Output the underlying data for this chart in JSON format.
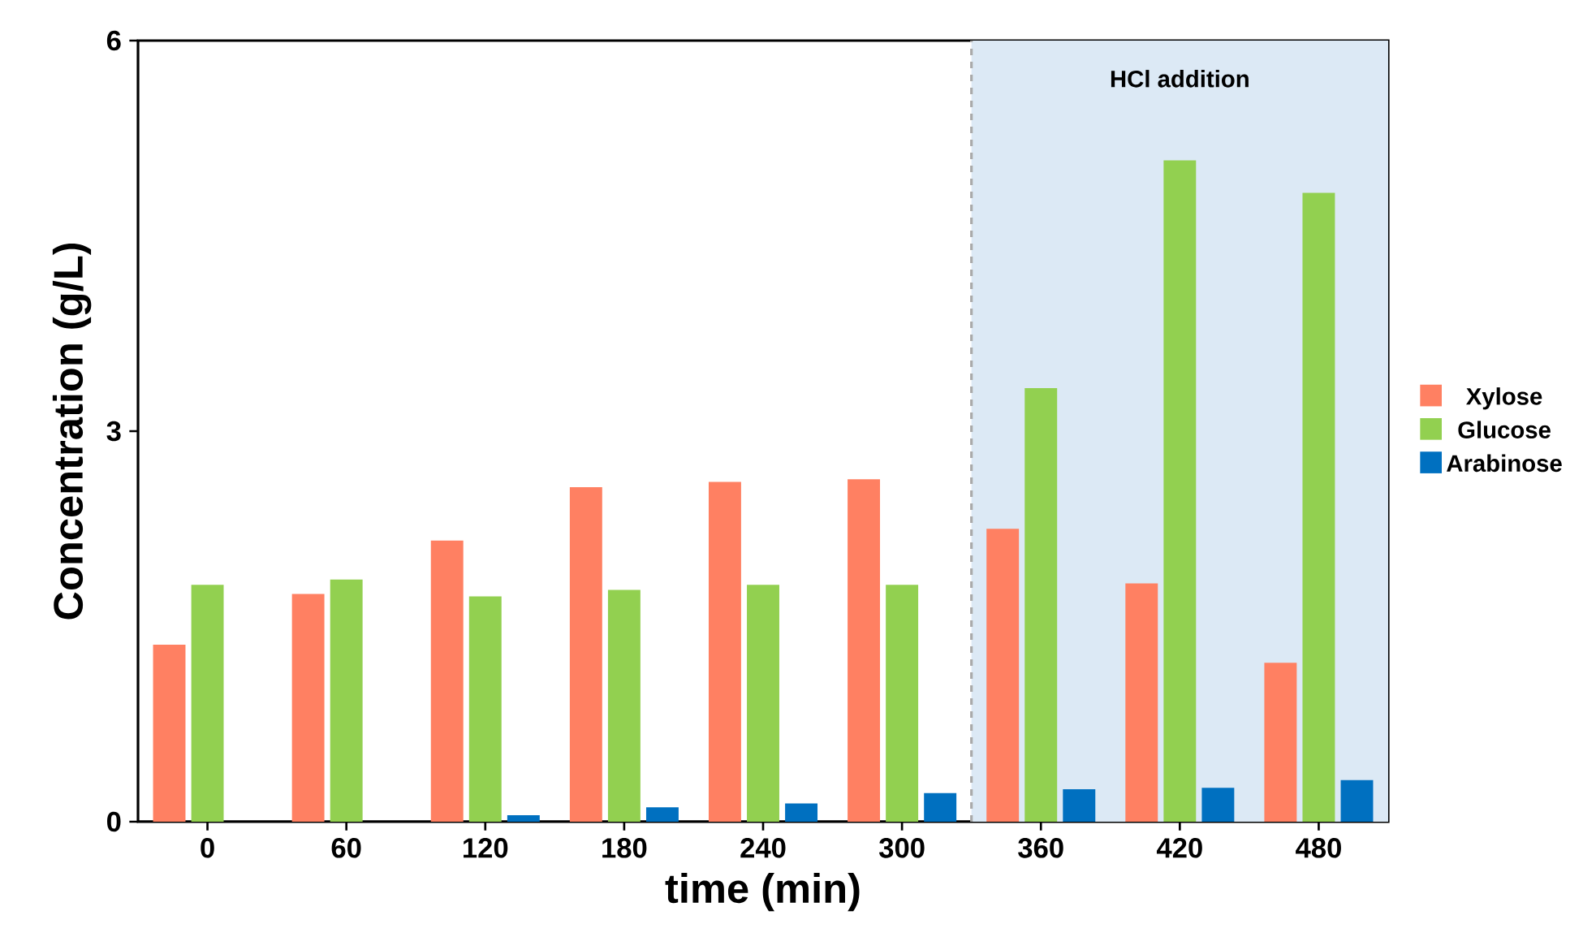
{
  "chart_data": {
    "type": "bar",
    "xlabel": "time (min)",
    "ylabel": "Concentration (g/L)",
    "x": [
      0,
      60,
      120,
      180,
      240,
      300,
      360,
      420,
      480
    ],
    "xlim": [
      -30,
      510
    ],
    "xticks": [
      0,
      60,
      120,
      180,
      240,
      300,
      360,
      420,
      480
    ],
    "ylim": [
      0,
      6
    ],
    "yticks": [
      0,
      3,
      6
    ],
    "series": [
      {
        "name": "Xylose",
        "color": "#ff8062",
        "values": [
          1.36,
          1.75,
          2.16,
          2.57,
          2.61,
          2.63,
          2.25,
          1.83,
          1.22
        ]
      },
      {
        "name": "Glucose",
        "color": "#92d050",
        "values": [
          1.82,
          1.86,
          1.73,
          1.78,
          1.82,
          1.82,
          3.33,
          5.08,
          4.83
        ]
      },
      {
        "name": "Arabinose",
        "color": "#0070c0",
        "values": [
          null,
          null,
          0.05,
          0.11,
          0.14,
          0.22,
          0.25,
          0.26,
          0.32
        ]
      }
    ],
    "bands": [
      {
        "axis": "x",
        "from": 330,
        "to": 510,
        "label": "HCl addition",
        "color": "#dce9f5"
      }
    ],
    "ref_lines": [
      {
        "axis": "x",
        "value": 330,
        "color": "#aaaaaa",
        "line_style": "dashed"
      }
    ],
    "legend": "right",
    "grid": false
  }
}
